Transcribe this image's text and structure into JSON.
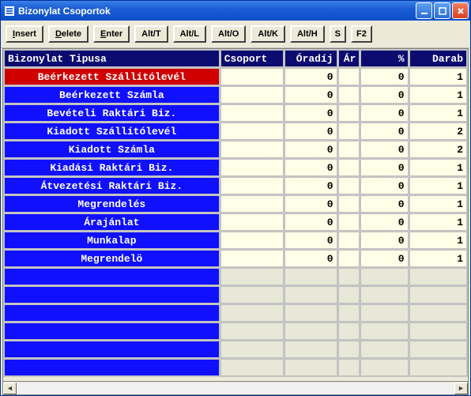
{
  "window": {
    "title": "Bizonylat Csoportok"
  },
  "toolbar": {
    "insert": {
      "u": "I",
      "rest": "nsert"
    },
    "delete": {
      "u": "D",
      "rest": "elete"
    },
    "enter": {
      "u": "E",
      "rest": "nter"
    },
    "altt": "Alt/T",
    "altl": "Alt/L",
    "alto": "Alt/O",
    "altk": "Alt/K",
    "alth": "Alt/H",
    "s": "S",
    "f2": "F2"
  },
  "columns": {
    "type": "Bizonylat Tipusa",
    "group": "Csoport",
    "oradij": "Óradíj",
    "ar": "Ár",
    "pct": "%",
    "darab": "Darab"
  },
  "rows": [
    {
      "type": "Beérkezett Szállítólevél",
      "group": "",
      "oradij": "0",
      "ar": "",
      "pct": "0",
      "darab": "1",
      "selected": true
    },
    {
      "type": "Beérkezett Számla",
      "group": "",
      "oradij": "0",
      "ar": "",
      "pct": "0",
      "darab": "1"
    },
    {
      "type": "Bevételi Raktári Biz.",
      "group": "",
      "oradij": "0",
      "ar": "",
      "pct": "0",
      "darab": "1"
    },
    {
      "type": "Kiadott Szállítólevél",
      "group": "",
      "oradij": "0",
      "ar": "",
      "pct": "0",
      "darab": "2"
    },
    {
      "type": "Kiadott Számla",
      "group": "",
      "oradij": "0",
      "ar": "",
      "pct": "0",
      "darab": "2"
    },
    {
      "type": "Kiadási Raktári Biz.",
      "group": "",
      "oradij": "0",
      "ar": "",
      "pct": "0",
      "darab": "1"
    },
    {
      "type": "Átvezetési Raktári Biz.",
      "group": "",
      "oradij": "0",
      "ar": "",
      "pct": "0",
      "darab": "1"
    },
    {
      "type": "Megrendelés",
      "group": "",
      "oradij": "0",
      "ar": "",
      "pct": "0",
      "darab": "1"
    },
    {
      "type": "Árajánlat",
      "group": "",
      "oradij": "0",
      "ar": "",
      "pct": "0",
      "darab": "1"
    },
    {
      "type": "Munkalap",
      "group": "",
      "oradij": "0",
      "ar": "",
      "pct": "0",
      "darab": "1"
    },
    {
      "type": "Megrendelö",
      "group": "",
      "oradij": "0",
      "ar": "",
      "pct": "0",
      "darab": "1"
    }
  ],
  "empty_rows": 6,
  "colwidths": {
    "type": 245,
    "group": 72,
    "oradij": 60,
    "ar": 25,
    "pct": 54,
    "darab": 66
  },
  "colors": {
    "header_bg": "#0b0b70",
    "type_bg": "#1010ff",
    "selected_bg": "#d00000",
    "cell_bg": "#ffffe8",
    "empty_bg": "#e8e8d8"
  }
}
